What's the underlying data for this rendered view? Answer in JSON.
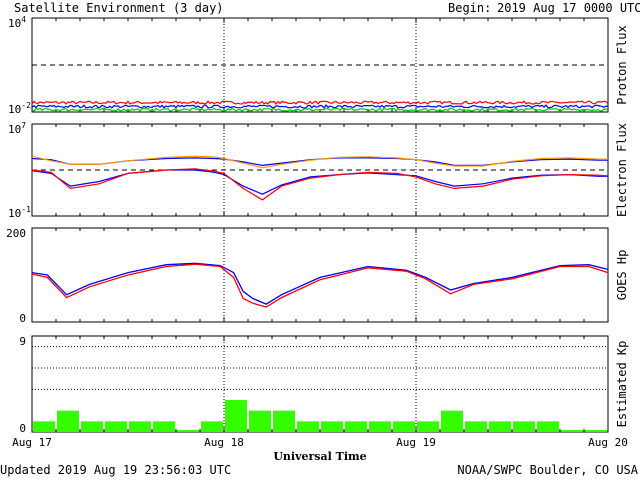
{
  "title": "Satellite Environment (3 day)",
  "begin_label": "Begin:",
  "begin_value": "2019 Aug 17 0000 UTC",
  "updated": "Updated 2019 Aug 19 23:56:03 UTC",
  "credit": "NOAA/SWPC Boulder, CO USA",
  "chart_data": {
    "type": "multi-panel",
    "xlabel": "Universal Time",
    "x_ticks": [
      "Aug 17",
      "Aug 18",
      "Aug 19",
      "Aug 20"
    ],
    "panels": [
      {
        "id": "proton",
        "type": "line",
        "ylabel": "Proton Flux",
        "y_scale": "log",
        "ylim_exp": [
          -2,
          4
        ],
        "tick_labels": [
          {
            "base": "10",
            "exp": "4"
          },
          {
            "base": "10",
            "exp": "-2"
          }
        ],
        "threshold_exp": 1,
        "colors": {
          "red": "#ff0000",
          "blue": "#0000ff",
          "green": "#00cc00",
          "threshold": "#000000"
        },
        "series_exp_levels": [
          {
            "color": "red",
            "value_exp": -1.4
          },
          {
            "color": "blue",
            "value_exp": -1.65
          },
          {
            "color": "green",
            "value_exp": -1.85
          }
        ]
      },
      {
        "id": "electron",
        "type": "line",
        "ylabel": "Electron Flux",
        "y_scale": "log",
        "ylim_exp": [
          -1,
          7
        ],
        "tick_labels": [
          {
            "base": "10",
            "exp": "7"
          },
          {
            "base": "10",
            "exp": "-1"
          }
        ],
        "threshold_exp": 3,
        "x_days": [
          0,
          0.1,
          0.2,
          0.35,
          0.5,
          0.7,
          0.85,
          0.95,
          1.0,
          1.1,
          1.2,
          1.3,
          1.45,
          1.6,
          1.75,
          1.9,
          2.0,
          2.1,
          2.2,
          2.35,
          2.5,
          2.65,
          2.8,
          2.95,
          3.0
        ],
        "series": [
          {
            "color": "#0000ff",
            "exp": [
              4.0,
              3.9,
              3.5,
              3.5,
              3.8,
              4.0,
              4.05,
              4.0,
              3.95,
              3.7,
              3.4,
              3.6,
              3.9,
              4.05,
              4.05,
              4.0,
              3.9,
              3.7,
              3.4,
              3.4,
              3.7,
              3.9,
              3.95,
              3.85,
              3.85
            ]
          },
          {
            "color": "#ff9900",
            "exp": [
              4.2,
              3.8,
              3.5,
              3.5,
              3.8,
              4.1,
              4.2,
              4.15,
              4.0,
              3.6,
              3.2,
              3.5,
              3.85,
              4.1,
              4.15,
              4.05,
              3.9,
              3.6,
              3.35,
              3.35,
              3.75,
              4.0,
              4.05,
              3.95,
              3.95
            ]
          },
          {
            "color": "#0000ff",
            "exp": [
              2.95,
              2.7,
              1.6,
              2.0,
              2.7,
              3.0,
              3.0,
              2.8,
              2.6,
              1.6,
              0.9,
              1.7,
              2.4,
              2.6,
              2.75,
              2.6,
              2.5,
              2.0,
              1.6,
              1.8,
              2.3,
              2.55,
              2.6,
              2.45,
              2.45
            ]
          },
          {
            "color": "#ff0000",
            "exp": [
              3.0,
              2.8,
              1.4,
              1.8,
              2.7,
              3.0,
              3.1,
              2.9,
              2.7,
              1.4,
              0.4,
              1.6,
              2.3,
              2.6,
              2.8,
              2.7,
              2.4,
              1.8,
              1.4,
              1.6,
              2.2,
              2.5,
              2.6,
              2.55,
              2.5
            ]
          }
        ]
      },
      {
        "id": "hp",
        "type": "line",
        "ylabel": "GOES Hp",
        "ylim": [
          0,
          200
        ],
        "tick_labels": [
          "200",
          "0"
        ],
        "x_days": [
          0,
          0.08,
          0.18,
          0.3,
          0.5,
          0.7,
          0.85,
          0.98,
          1.05,
          1.1,
          1.15,
          1.22,
          1.3,
          1.5,
          1.75,
          1.95,
          2.05,
          2.18,
          2.3,
          2.5,
          2.75,
          2.9,
          3.0
        ],
        "series": [
          {
            "color": "#0000ff",
            "values": [
              105,
              100,
              58,
              80,
              105,
              122,
              125,
              120,
              105,
              65,
              50,
              38,
              58,
              95,
              118,
              110,
              95,
              68,
              82,
              95,
              120,
              122,
              112
            ]
          },
          {
            "color": "#ff0000",
            "values": [
              102,
              95,
              52,
              75,
              100,
              118,
              123,
              118,
              95,
              50,
              40,
              32,
              52,
              90,
              115,
              108,
              92,
              60,
              80,
              92,
              118,
              118,
              105
            ]
          }
        ]
      },
      {
        "id": "kp",
        "type": "bar",
        "ylabel": "Estimated Kp",
        "ylim": [
          0,
          9
        ],
        "tick_labels": [
          "9",
          "0"
        ],
        "bar_color": "#33ff00",
        "dotted_levels": [
          4,
          6,
          8
        ],
        "values": [
          1,
          2,
          1,
          1,
          1,
          1,
          0,
          1,
          3,
          2,
          2,
          1,
          1,
          1,
          1,
          1,
          1,
          2,
          1,
          1,
          1,
          1,
          0,
          0
        ]
      }
    ]
  }
}
